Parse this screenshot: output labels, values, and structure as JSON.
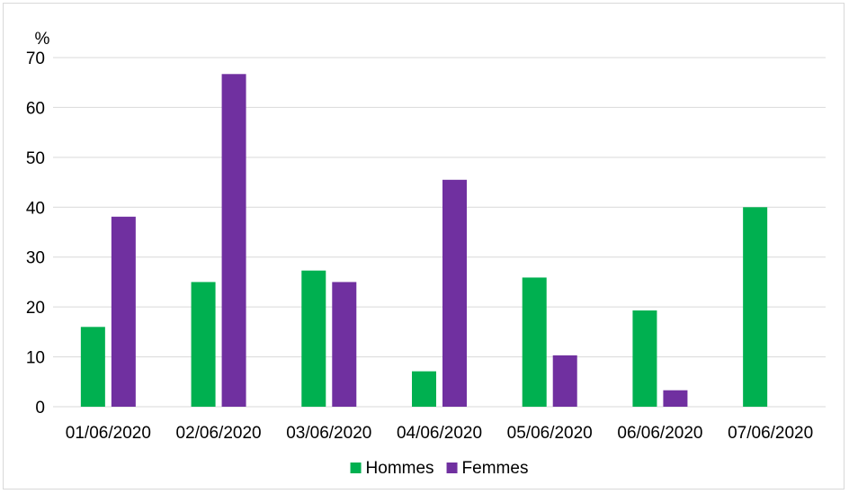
{
  "chart_data": {
    "type": "bar",
    "ylabel": "%",
    "ylim": [
      0,
      70
    ],
    "yticks": [
      0,
      10,
      20,
      30,
      40,
      50,
      60,
      70
    ],
    "grid": true,
    "legend": "bottom-center",
    "categories": [
      "01/06/2020",
      "02/06/2020",
      "03/06/2020",
      "04/06/2020",
      "05/06/2020",
      "06/06/2020",
      "07/06/2020"
    ],
    "series": [
      {
        "name": "Hommes",
        "color": "#00b050",
        "values": [
          16,
          25,
          27.3,
          7.1,
          25.9,
          19.3,
          40
        ]
      },
      {
        "name": "Femmes",
        "color": "#7030a0",
        "values": [
          38.1,
          66.7,
          25,
          45.5,
          10.3,
          3.3,
          0
        ]
      }
    ]
  }
}
